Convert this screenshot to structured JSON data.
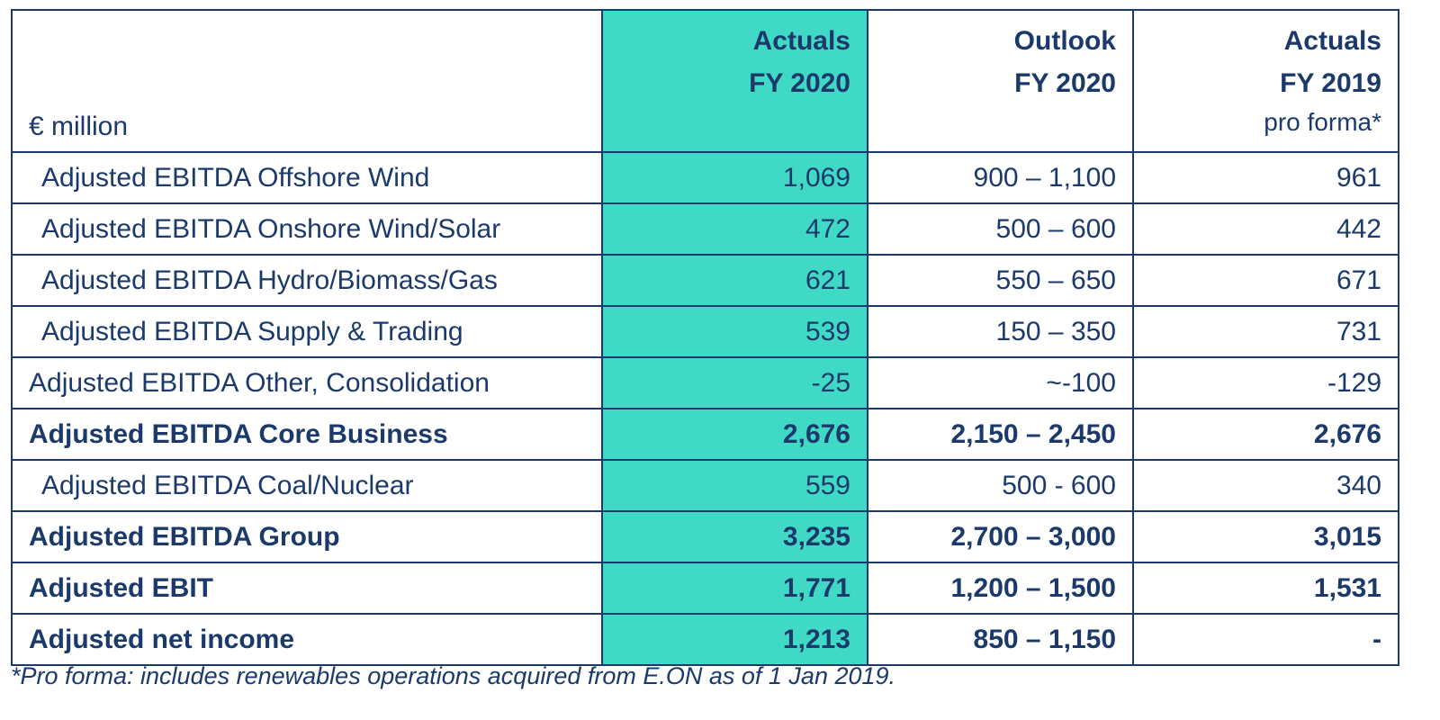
{
  "table": {
    "header": {
      "label": "€ million",
      "columns": [
        {
          "lines": [
            "Actuals",
            "FY 2020"
          ],
          "highlight": true
        },
        {
          "lines": [
            "Outlook",
            "FY 2020"
          ],
          "highlight": false
        },
        {
          "lines": [
            "Actuals",
            "FY 2019"
          ],
          "note": "pro forma*",
          "highlight": false
        }
      ]
    },
    "rows": [
      {
        "label": "Adjusted EBITDA Offshore Wind",
        "bold": false,
        "indent": true,
        "cells": [
          "1,069",
          "900 – 1,100",
          "961"
        ]
      },
      {
        "label": "Adjusted EBITDA Onshore Wind/Solar",
        "bold": false,
        "indent": true,
        "cells": [
          "472",
          "500 – 600",
          "442"
        ]
      },
      {
        "label": "Adjusted EBITDA Hydro/Biomass/Gas",
        "bold": false,
        "indent": true,
        "cells": [
          "621",
          "550 – 650",
          "671"
        ]
      },
      {
        "label": "Adjusted EBITDA Supply & Trading",
        "bold": false,
        "indent": true,
        "cells": [
          "539",
          "150 – 350",
          "731"
        ]
      },
      {
        "label": "Adjusted EBITDA Other, Consolidation",
        "bold": false,
        "indent": false,
        "cells": [
          "-25",
          "~-100",
          "-129"
        ]
      },
      {
        "label": "Adjusted EBITDA Core Business",
        "bold": true,
        "indent": false,
        "cells": [
          "2,676",
          "2,150 – 2,450",
          "2,676"
        ]
      },
      {
        "label": "Adjusted EBITDA Coal/Nuclear",
        "bold": false,
        "indent": true,
        "cells": [
          "559",
          "500 - 600",
          "340"
        ]
      },
      {
        "label": "Adjusted EBITDA Group",
        "bold": true,
        "indent": false,
        "cells": [
          "3,235",
          "2,700 – 3,000",
          "3,015"
        ]
      },
      {
        "label": "Adjusted EBIT",
        "bold": true,
        "indent": false,
        "cells": [
          "1,771",
          "1,200 – 1,500",
          "1,531"
        ]
      },
      {
        "label": "Adjusted net income",
        "bold": true,
        "indent": false,
        "cells": [
          "1,213",
          "850 – 1,150",
          "-"
        ]
      }
    ]
  },
  "footnote": "*Pro forma: includes renewables operations acquired from E.ON as of 1 Jan 2019."
}
